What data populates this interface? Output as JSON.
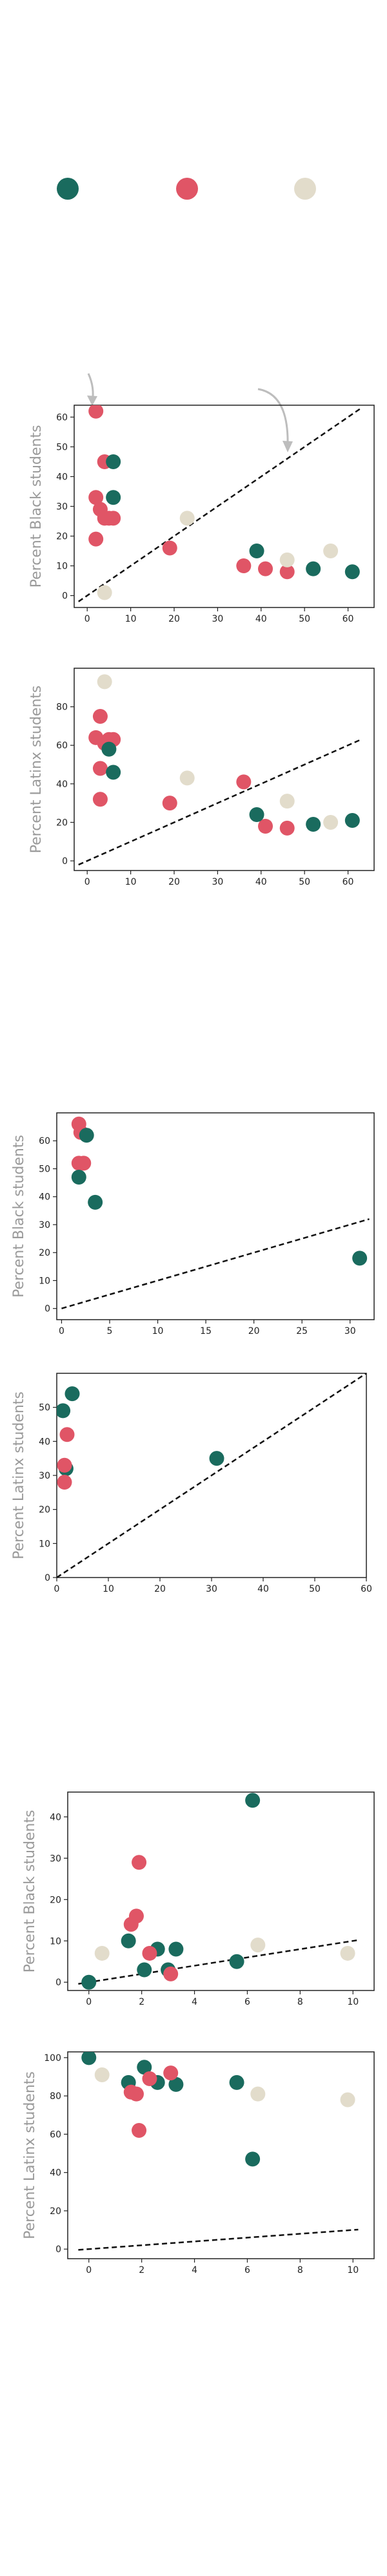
{
  "legend_colors": {
    "teal": "#1a6b5e",
    "red": "#e05566",
    "beige": "#e2dccb"
  },
  "chart_data": [
    {
      "type": "scatter",
      "ylabel": "Percent Black students",
      "xlim": [
        -3,
        66
      ],
      "ylim": [
        -4,
        64
      ],
      "xticks": [
        0,
        10,
        20,
        30,
        40,
        50,
        60
      ],
      "yticks": [
        0,
        10,
        20,
        30,
        40,
        50,
        60
      ],
      "reference_line": {
        "x": [
          -2,
          63
        ],
        "y": [
          -2,
          63
        ],
        "style": "dashed"
      },
      "series": [
        {
          "color": "#e05566",
          "points": [
            [
              2,
              62
            ],
            [
              2,
              33
            ],
            [
              3,
              29
            ],
            [
              4,
              45
            ],
            [
              5,
              26
            ],
            [
              4,
              26
            ],
            [
              6,
              26
            ],
            [
              2,
              19
            ],
            [
              19,
              16
            ],
            [
              36,
              10
            ],
            [
              41,
              9
            ],
            [
              46,
              8
            ]
          ]
        },
        {
          "color": "#1a6b5e",
          "points": [
            [
              6,
              45
            ],
            [
              6,
              33
            ],
            [
              39,
              15
            ],
            [
              52,
              9
            ],
            [
              61,
              8
            ]
          ]
        },
        {
          "color": "#e2dccb",
          "points": [
            [
              4,
              1
            ],
            [
              23,
              26
            ],
            [
              46,
              12
            ],
            [
              56,
              15
            ]
          ]
        }
      ]
    },
    {
      "type": "scatter",
      "ylabel": "Percent Latinx students",
      "xlim": [
        -3,
        66
      ],
      "ylim": [
        -5,
        100
      ],
      "xticks": [
        0,
        10,
        20,
        30,
        40,
        50,
        60
      ],
      "yticks": [
        0,
        20,
        40,
        60,
        80
      ],
      "reference_line": {
        "x": [
          -2,
          63
        ],
        "y": [
          -2,
          63
        ],
        "style": "dashed"
      },
      "series": [
        {
          "color": "#e2dccb",
          "points": [
            [
              4,
              93
            ],
            [
              23,
              43
            ],
            [
              46,
              31
            ],
            [
              56,
              20
            ]
          ]
        },
        {
          "color": "#e05566",
          "points": [
            [
              3,
              75
            ],
            [
              2,
              64
            ],
            [
              4,
              61
            ],
            [
              5,
              63
            ],
            [
              6,
              63
            ],
            [
              3,
              48
            ],
            [
              3,
              32
            ],
            [
              19,
              30
            ],
            [
              36,
              41
            ],
            [
              41,
              18
            ],
            [
              46,
              17
            ]
          ]
        },
        {
          "color": "#1a6b5e",
          "points": [
            [
              5,
              58
            ],
            [
              6,
              46
            ],
            [
              39,
              24
            ],
            [
              52,
              19
            ],
            [
              61,
              21
            ]
          ]
        }
      ]
    },
    {
      "type": "scatter",
      "ylabel": "Percent Black students",
      "xlim": [
        -0.5,
        32.5
      ],
      "ylim": [
        -4,
        70
      ],
      "xticks": [
        0,
        5,
        10,
        15,
        20,
        25,
        30
      ],
      "yticks": [
        0,
        10,
        20,
        30,
        40,
        50,
        60
      ],
      "reference_line": {
        "x": [
          0,
          32
        ],
        "y": [
          0,
          32
        ],
        "style": "dashed"
      },
      "series": [
        {
          "color": "#e05566",
          "points": [
            [
              1.8,
              66
            ],
            [
              2,
              63
            ],
            [
              1.8,
              52
            ],
            [
              2.3,
              52
            ]
          ]
        },
        {
          "color": "#1a6b5e",
          "points": [
            [
              2.6,
              62
            ],
            [
              1.8,
              47
            ],
            [
              3.5,
              38
            ],
            [
              31,
              18
            ]
          ]
        }
      ]
    },
    {
      "type": "scatter",
      "ylabel": "Percent Latinx students",
      "xlim": [
        0,
        60
      ],
      "ylim": [
        0,
        60
      ],
      "xticks": [
        0,
        10,
        20,
        30,
        40,
        50,
        60
      ],
      "yticks": [
        0,
        10,
        20,
        30,
        40,
        50
      ],
      "reference_line": {
        "x": [
          0,
          60
        ],
        "y": [
          0,
          60
        ],
        "style": "dashed"
      },
      "series": [
        {
          "color": "#1a6b5e",
          "points": [
            [
              3,
              54
            ],
            [
              1.2,
              49
            ],
            [
              1.8,
              32
            ],
            [
              31,
              35
            ]
          ]
        },
        {
          "color": "#e05566",
          "points": [
            [
              2,
              42
            ],
            [
              1.5,
              33
            ],
            [
              1.5,
              28
            ]
          ]
        }
      ]
    },
    {
      "type": "scatter",
      "ylabel": "Percent Black students",
      "xlim": [
        -0.8,
        10.8
      ],
      "ylim": [
        -2,
        46
      ],
      "xticks": [
        0,
        2,
        4,
        6,
        8,
        10
      ],
      "yticks": [
        0,
        10,
        20,
        30,
        40
      ],
      "reference_line": {
        "x": [
          -0.4,
          10.2
        ],
        "y": [
          -0.4,
          10.2
        ],
        "style": "dashed"
      },
      "series": [
        {
          "color": "#1a6b5e",
          "points": [
            [
              0,
              0
            ],
            [
              1.5,
              10
            ],
            [
              2.1,
              3
            ],
            [
              2.6,
              8
            ],
            [
              3.3,
              8
            ],
            [
              3,
              3
            ],
            [
              5.6,
              5
            ],
            [
              6.2,
              44
            ]
          ]
        },
        {
          "color": "#e05566",
          "points": [
            [
              1.9,
              29
            ],
            [
              1.6,
              14
            ],
            [
              1.8,
              16
            ],
            [
              2.3,
              7
            ],
            [
              3.1,
              2
            ]
          ]
        },
        {
          "color": "#e2dccb",
          "points": [
            [
              0.5,
              7
            ],
            [
              6.4,
              9
            ],
            [
              9.8,
              7
            ]
          ]
        }
      ]
    },
    {
      "type": "scatter",
      "ylabel": "Percent Latinx students",
      "xlim": [
        -0.8,
        10.8
      ],
      "ylim": [
        -5,
        103
      ],
      "xticks": [
        0,
        2,
        4,
        6,
        8,
        10
      ],
      "yticks": [
        0,
        20,
        40,
        60,
        80,
        100
      ],
      "reference_line": {
        "x": [
          -0.4,
          10.2
        ],
        "y": [
          -0.4,
          10.2
        ],
        "style": "dashed"
      },
      "series": [
        {
          "color": "#1a6b5e",
          "points": [
            [
              0,
              100
            ],
            [
              1.5,
              87
            ],
            [
              2.1,
              95
            ],
            [
              2.6,
              87
            ],
            [
              3.3,
              86
            ],
            [
              5.6,
              87
            ],
            [
              6.2,
              47
            ]
          ]
        },
        {
          "color": "#e05566",
          "points": [
            [
              1.6,
              82
            ],
            [
              1.8,
              81
            ],
            [
              2.3,
              89
            ],
            [
              3.1,
              92
            ],
            [
              1.9,
              62
            ]
          ]
        },
        {
          "color": "#e2dccb",
          "points": [
            [
              0.5,
              91
            ],
            [
              6.4,
              81
            ],
            [
              9.8,
              78
            ]
          ]
        }
      ]
    }
  ]
}
